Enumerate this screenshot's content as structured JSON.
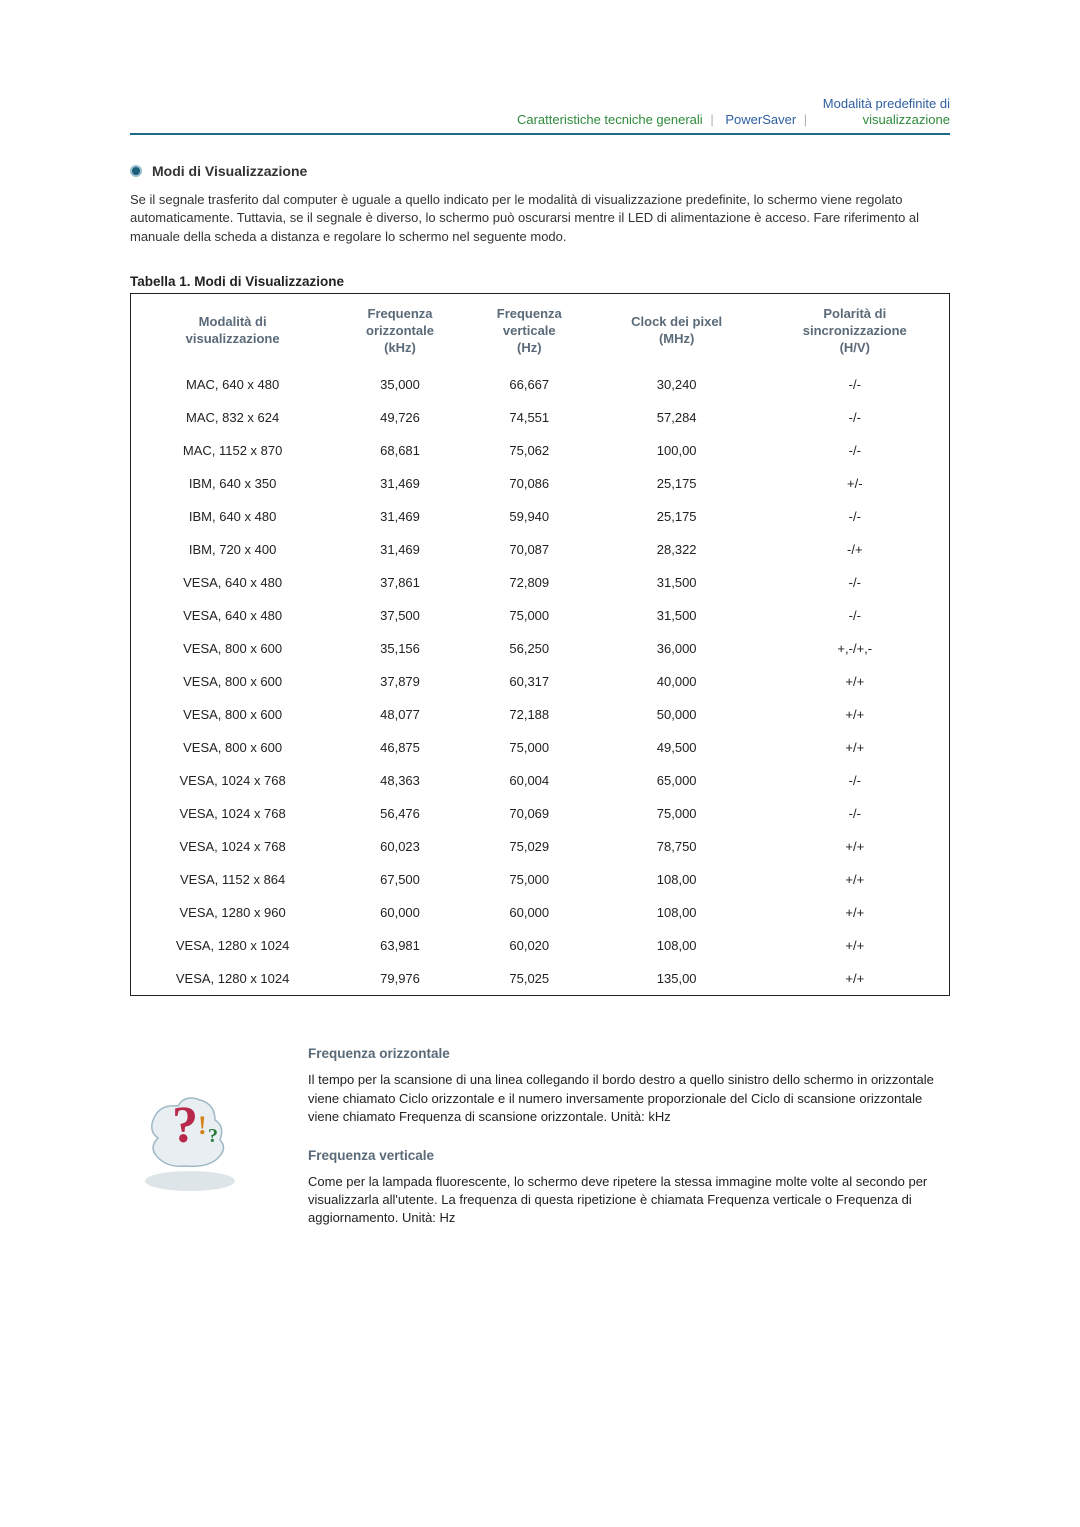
{
  "nav": {
    "item1": {
      "text": "Caratteristiche tecniche generali",
      "color": "#2e8a3a"
    },
    "item2": {
      "text": "PowerSaver",
      "color": "#2d5fa0"
    },
    "item3_line1": {
      "text": "Modalità predefinite di",
      "color": "#2d5fa0"
    },
    "item3_line2": {
      "text": "visualizzazione",
      "color": "#2e8a3a"
    }
  },
  "section": {
    "title": "Modi di Visualizzazione",
    "intro": "Se il segnale trasferito dal computer è uguale a quello indicato per le modalità di visualizzazione predefinite, lo schermo viene regolato automaticamente. Tuttavia, se il segnale è diverso, lo schermo può oscurarsi mentre il LED di alimentazione è acceso. Fare riferimento al manuale della scheda a distanza e regolare lo schermo nel seguente modo."
  },
  "table": {
    "caption": "Tabella 1. Modi di Visualizzazione",
    "headers": {
      "mode": "Modalità di\nvisualizzazione",
      "hfreq": "Frequenza\norizzontale\n(kHz)",
      "vfreq": "Frequenza\nverticale\n(Hz)",
      "clock": "Clock dei pixel\n(MHz)",
      "polarity": "Polarità di\nsincronizzazione\n(H/V)"
    },
    "rows": [
      {
        "mode": "MAC, 640 x 480",
        "h": "35,000",
        "v": "66,667",
        "c": "30,240",
        "p": "-/-"
      },
      {
        "mode": "MAC, 832 x 624",
        "h": "49,726",
        "v": "74,551",
        "c": "57,284",
        "p": "-/-"
      },
      {
        "mode": "MAC, 1152 x 870",
        "h": "68,681",
        "v": "75,062",
        "c": "100,00",
        "p": "-/-"
      },
      {
        "mode": "IBM, 640 x 350",
        "h": "31,469",
        "v": "70,086",
        "c": "25,175",
        "p": "+/-"
      },
      {
        "mode": "IBM, 640 x 480",
        "h": "31,469",
        "v": "59,940",
        "c": "25,175",
        "p": "-/-"
      },
      {
        "mode": "IBM, 720 x 400",
        "h": "31,469",
        "v": "70,087",
        "c": "28,322",
        "p": "-/+"
      },
      {
        "mode": "VESA, 640 x 480",
        "h": "37,861",
        "v": "72,809",
        "c": "31,500",
        "p": "-/-"
      },
      {
        "mode": "VESA, 640 x 480",
        "h": "37,500",
        "v": "75,000",
        "c": "31,500",
        "p": "-/-"
      },
      {
        "mode": "VESA, 800 x 600",
        "h": "35,156",
        "v": "56,250",
        "c": "36,000",
        "p": "+,-/+,-"
      },
      {
        "mode": "VESA, 800 x 600",
        "h": "37,879",
        "v": "60,317",
        "c": "40,000",
        "p": "+/+"
      },
      {
        "mode": "VESA, 800 x 600",
        "h": "48,077",
        "v": "72,188",
        "c": "50,000",
        "p": "+/+"
      },
      {
        "mode": "VESA, 800 x 600",
        "h": "46,875",
        "v": "75,000",
        "c": "49,500",
        "p": "+/+"
      },
      {
        "mode": "VESA, 1024 x 768",
        "h": "48,363",
        "v": "60,004",
        "c": "65,000",
        "p": "-/-"
      },
      {
        "mode": "VESA, 1024 x 768",
        "h": "56,476",
        "v": "70,069",
        "c": "75,000",
        "p": "-/-"
      },
      {
        "mode": "VESA, 1024 x 768",
        "h": "60,023",
        "v": "75,029",
        "c": "78,750",
        "p": "+/+"
      },
      {
        "mode": "VESA, 1152 x 864",
        "h": "67,500",
        "v": "75,000",
        "c": "108,00",
        "p": "+/+"
      },
      {
        "mode": "VESA, 1280 x 960",
        "h": "60,000",
        "v": "60,000",
        "c": "108,00",
        "p": "+/+"
      },
      {
        "mode": "VESA, 1280 x 1024",
        "h": "63,981",
        "v": "60,020",
        "c": "108,00",
        "p": "+/+"
      },
      {
        "mode": "VESA, 1280 x 1024",
        "h": "79,976",
        "v": "75,025",
        "c": "135,00",
        "p": "+/+"
      }
    ]
  },
  "definitions": {
    "hfreq_title": "Frequenza orizzontale",
    "hfreq_body": "Il tempo per la scansione di una linea collegando il bordo destro a quello sinistro dello schermo in orizzontale viene chiamato Ciclo orizzontale e il numero inversamente proporzionale del Ciclo di scansione orizzontale viene chiamato Frequenza di scansione orizzontale. Unità: kHz",
    "vfreq_title": "Frequenza verticale",
    "vfreq_body": "Come per la lampada fluorescente, lo schermo deve ripetere la stessa immagine molte volte al secondo per visualizzarla all'utente. La frequenza di questa ripetizione è chiamata Frequenza verticale o Frequenza di aggiornamento. Unità: Hz"
  },
  "icon_colors": {
    "question": "#b8284a",
    "exclaim": "#d67f14",
    "aura": "#9eb8c4"
  }
}
